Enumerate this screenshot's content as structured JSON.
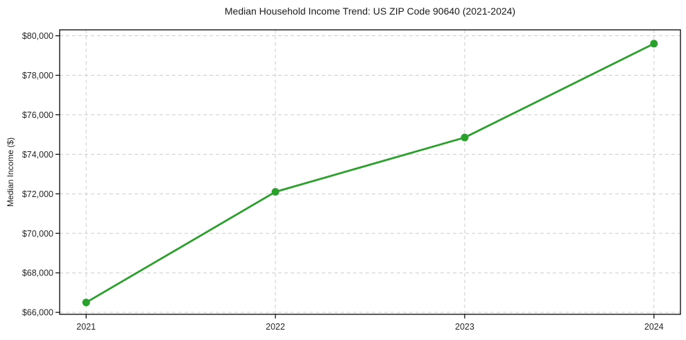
{
  "figure": {
    "background": "#ffffff"
  },
  "chart_data": {
    "type": "line",
    "title": "Median Household Income Trend: US ZIP Code 90640 (2021-2024)",
    "xlabel": "",
    "ylabel": "Median Income ($)",
    "x": [
      2021,
      2022,
      2023,
      2024
    ],
    "x_tick_labels": [
      "2021",
      "2022",
      "2023",
      "2024"
    ],
    "series": [
      {
        "values": [
          66500,
          72100,
          74850,
          79600
        ],
        "color": "#2ca02c",
        "marker": "circle"
      }
    ],
    "xlim": [
      2020.86,
      2024.14
    ],
    "ylim": [
      65900,
      80300
    ],
    "y_ticks": [
      66000,
      68000,
      70000,
      72000,
      74000,
      76000,
      78000,
      80000
    ],
    "y_tick_labels": [
      "$66,000",
      "$68,000",
      "$70,000",
      "$72,000",
      "$74,000",
      "$76,000",
      "$78,000",
      "$80,000"
    ],
    "grid": true,
    "grid_style": "dashed",
    "legend": "none",
    "colors": {
      "grid": "#cccccc",
      "axis": "#000000",
      "tick_label": "#262626",
      "title": "#1a1a1a"
    }
  }
}
